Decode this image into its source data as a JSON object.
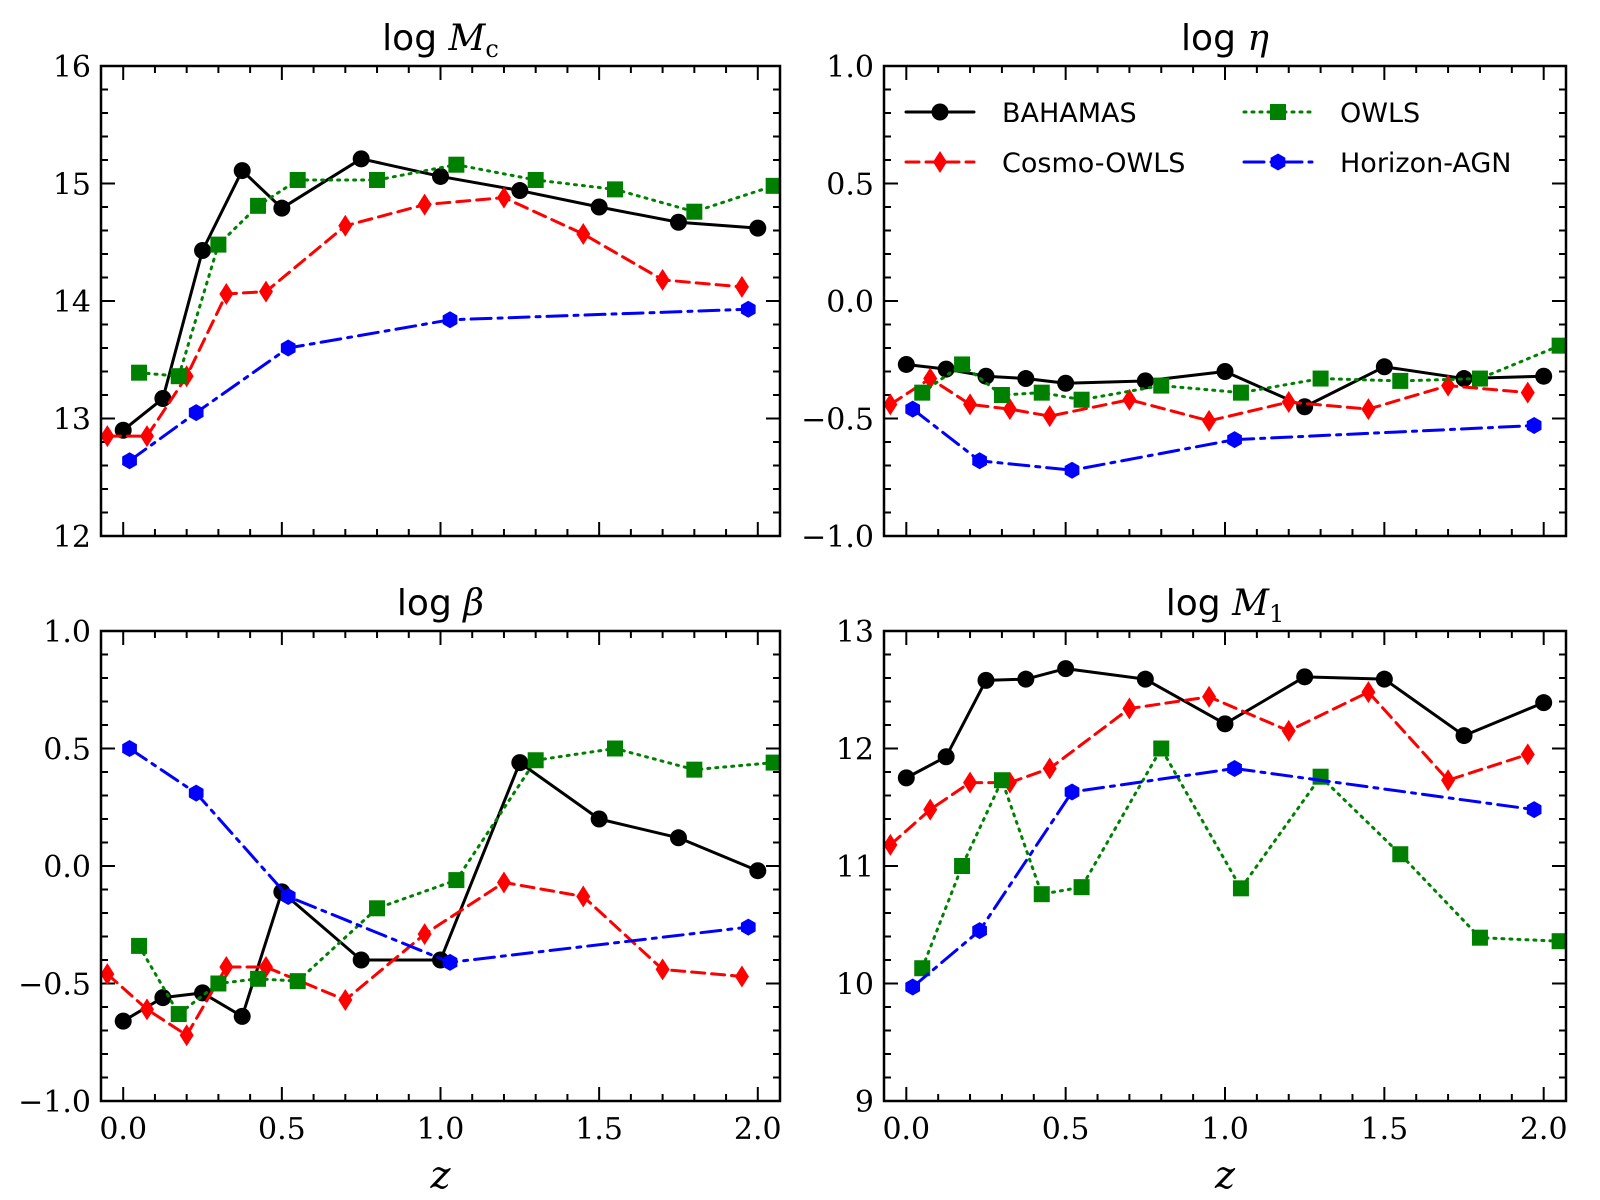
{
  "chart_data": [
    {
      "type": "line",
      "title": "log M_c",
      "title_parts": {
        "prefix": "log ",
        "symbol": "M",
        "subscript": "c"
      },
      "xlabel": "",
      "ylabel": "",
      "xlim": [
        -0.07,
        2.07
      ],
      "ylim": [
        12,
        16
      ],
      "xticks": [
        "0.0",
        "0.5",
        "1.0",
        "1.5",
        "2.0"
      ],
      "yticks": [
        "12",
        "13",
        "14",
        "15",
        "16"
      ],
      "show_xtick_labels": false,
      "legend": false,
      "series": [
        {
          "name": "BAHAMAS",
          "x": [
            0.0,
            0.125,
            0.25,
            0.375,
            0.5,
            0.75,
            1.0,
            1.25,
            1.5,
            1.75,
            2.0
          ],
          "y": [
            12.9,
            13.17,
            14.43,
            15.11,
            14.79,
            15.21,
            15.06,
            14.94,
            14.8,
            14.67,
            14.62
          ]
        },
        {
          "name": "Cosmo-OWLS",
          "x": [
            -0.05,
            0.075,
            0.2,
            0.325,
            0.45,
            0.7,
            0.95,
            1.2,
            1.45,
            1.7,
            1.95
          ],
          "y": [
            12.85,
            12.85,
            13.36,
            14.06,
            14.08,
            14.64,
            14.82,
            14.88,
            14.57,
            14.18,
            14.12
          ]
        },
        {
          "name": "OWLS",
          "x": [
            0.05,
            0.175,
            0.3,
            0.425,
            0.55,
            0.8,
            1.05,
            1.3,
            1.55,
            1.8,
            2.05
          ],
          "y": [
            13.39,
            13.36,
            14.48,
            14.81,
            15.03,
            15.03,
            15.16,
            15.03,
            14.95,
            14.76,
            14.98
          ]
        },
        {
          "name": "Horizon-AGN",
          "x": [
            0.02,
            0.23,
            0.52,
            1.03,
            1.97
          ],
          "y": [
            12.64,
            13.05,
            13.6,
            13.84,
            13.93
          ]
        }
      ]
    },
    {
      "type": "line",
      "title": "log η",
      "title_parts": {
        "prefix": "log ",
        "symbol": "η",
        "subscript": ""
      },
      "xlabel": "",
      "ylabel": "",
      "xlim": [
        -0.07,
        2.07
      ],
      "ylim": [
        -1.0,
        1.0
      ],
      "xticks": [
        "0.0",
        "0.5",
        "1.0",
        "1.5",
        "2.0"
      ],
      "yticks": [
        "−1.0",
        "−0.5",
        "0.0",
        "0.5",
        "1.0"
      ],
      "show_xtick_labels": false,
      "legend": true,
      "legend_placement": "top",
      "series": [
        {
          "name": "BAHAMAS",
          "x": [
            0.0,
            0.125,
            0.25,
            0.375,
            0.5,
            0.75,
            1.0,
            1.25,
            1.5,
            1.75,
            2.0
          ],
          "y": [
            -0.27,
            -0.29,
            -0.32,
            -0.33,
            -0.35,
            -0.34,
            -0.3,
            -0.45,
            -0.28,
            -0.33,
            -0.32
          ]
        },
        {
          "name": "Cosmo-OWLS",
          "x": [
            -0.05,
            0.075,
            0.2,
            0.325,
            0.45,
            0.7,
            0.95,
            1.2,
            1.45,
            1.7,
            1.95
          ],
          "y": [
            -0.44,
            -0.33,
            -0.44,
            -0.46,
            -0.49,
            -0.42,
            -0.51,
            -0.43,
            -0.46,
            -0.36,
            -0.39
          ]
        },
        {
          "name": "OWLS",
          "x": [
            0.05,
            0.175,
            0.3,
            0.425,
            0.55,
            0.8,
            1.05,
            1.3,
            1.55,
            1.8,
            2.05
          ],
          "y": [
            -0.39,
            -0.27,
            -0.4,
            -0.39,
            -0.42,
            -0.36,
            -0.39,
            -0.33,
            -0.34,
            -0.33,
            -0.19
          ]
        },
        {
          "name": "Horizon-AGN",
          "x": [
            0.02,
            0.23,
            0.52,
            1.03,
            1.97
          ],
          "y": [
            -0.46,
            -0.68,
            -0.72,
            -0.59,
            -0.53
          ]
        }
      ]
    },
    {
      "type": "line",
      "title": "log β",
      "title_parts": {
        "prefix": "log ",
        "symbol": "β",
        "subscript": ""
      },
      "xlabel": "z",
      "ylabel": "",
      "xlim": [
        -0.07,
        2.07
      ],
      "ylim": [
        -1.0,
        1.0
      ],
      "xticks": [
        "0.0",
        "0.5",
        "1.0",
        "1.5",
        "2.0"
      ],
      "yticks": [
        "−1.0",
        "−0.5",
        "0.0",
        "0.5",
        "1.0"
      ],
      "show_xtick_labels": true,
      "legend": false,
      "series": [
        {
          "name": "BAHAMAS",
          "x": [
            0.0,
            0.125,
            0.25,
            0.375,
            0.5,
            0.75,
            1.0,
            1.25,
            1.5,
            1.75,
            2.0
          ],
          "y": [
            -0.66,
            -0.56,
            -0.54,
            -0.64,
            -0.11,
            -0.4,
            -0.4,
            0.44,
            0.2,
            0.12,
            -0.02
          ]
        },
        {
          "name": "Cosmo-OWLS",
          "x": [
            -0.05,
            0.075,
            0.2,
            0.325,
            0.45,
            0.7,
            0.95,
            1.2,
            1.45,
            1.7,
            1.95
          ],
          "y": [
            -0.46,
            -0.61,
            -0.72,
            -0.43,
            -0.43,
            -0.57,
            -0.29,
            -0.07,
            -0.13,
            -0.44,
            -0.47
          ]
        },
        {
          "name": "OWLS",
          "x": [
            0.05,
            0.175,
            0.3,
            0.425,
            0.55,
            0.8,
            1.05,
            1.3,
            1.55,
            1.8,
            2.05
          ],
          "y": [
            -0.34,
            -0.63,
            -0.5,
            -0.48,
            -0.49,
            -0.18,
            -0.06,
            0.45,
            0.5,
            0.41,
            0.44
          ]
        },
        {
          "name": "Horizon-AGN",
          "x": [
            0.02,
            0.23,
            0.52,
            1.03,
            1.97
          ],
          "y": [
            0.5,
            0.31,
            -0.13,
            -0.41,
            -0.26
          ]
        }
      ]
    },
    {
      "type": "line",
      "title": "log M_1",
      "title_parts": {
        "prefix": "log ",
        "symbol": "M",
        "subscript": "1"
      },
      "xlabel": "z",
      "ylabel": "",
      "xlim": [
        -0.07,
        2.07
      ],
      "ylim": [
        9,
        13
      ],
      "xticks": [
        "0.0",
        "0.5",
        "1.0",
        "1.5",
        "2.0"
      ],
      "yticks": [
        "9",
        "10",
        "11",
        "12",
        "13"
      ],
      "show_xtick_labels": true,
      "legend": false,
      "series": [
        {
          "name": "BAHAMAS",
          "x": [
            0.0,
            0.125,
            0.25,
            0.375,
            0.5,
            0.75,
            1.0,
            1.25,
            1.5,
            1.75,
            2.0
          ],
          "y": [
            11.75,
            11.93,
            12.58,
            12.59,
            12.68,
            12.59,
            12.21,
            12.61,
            12.59,
            12.11,
            12.39
          ]
        },
        {
          "name": "Cosmo-OWLS",
          "x": [
            -0.05,
            0.075,
            0.2,
            0.325,
            0.45,
            0.7,
            0.95,
            1.2,
            1.45,
            1.7,
            1.95
          ],
          "y": [
            11.18,
            11.48,
            11.71,
            11.71,
            11.83,
            12.34,
            12.44,
            12.15,
            12.48,
            11.73,
            11.95
          ]
        },
        {
          "name": "OWLS",
          "x": [
            0.05,
            0.175,
            0.3,
            0.425,
            0.55,
            0.8,
            1.05,
            1.3,
            1.55,
            1.8,
            2.05
          ],
          "y": [
            10.13,
            11.0,
            11.73,
            10.76,
            10.82,
            12.0,
            10.81,
            11.76,
            11.1,
            10.39,
            10.36
          ]
        },
        {
          "name": "Horizon-AGN",
          "x": [
            0.02,
            0.23,
            0.52,
            1.03,
            1.97
          ],
          "y": [
            9.97,
            10.45,
            11.63,
            11.83,
            11.48
          ]
        }
      ]
    }
  ],
  "series_styles": [
    {
      "name": "BAHAMAS",
      "color": "#000000",
      "dash": "none",
      "marker": "circle"
    },
    {
      "name": "Cosmo-OWLS",
      "color": "#ff0000",
      "dash": "13,7",
      "marker": "diamond"
    },
    {
      "name": "OWLS",
      "color": "#008000",
      "dash": "2,6",
      "marker": "square"
    },
    {
      "name": "Horizon-AGN",
      "color": "#0000ff",
      "dash": "20,7,4,7",
      "marker": "hexagon"
    }
  ]
}
